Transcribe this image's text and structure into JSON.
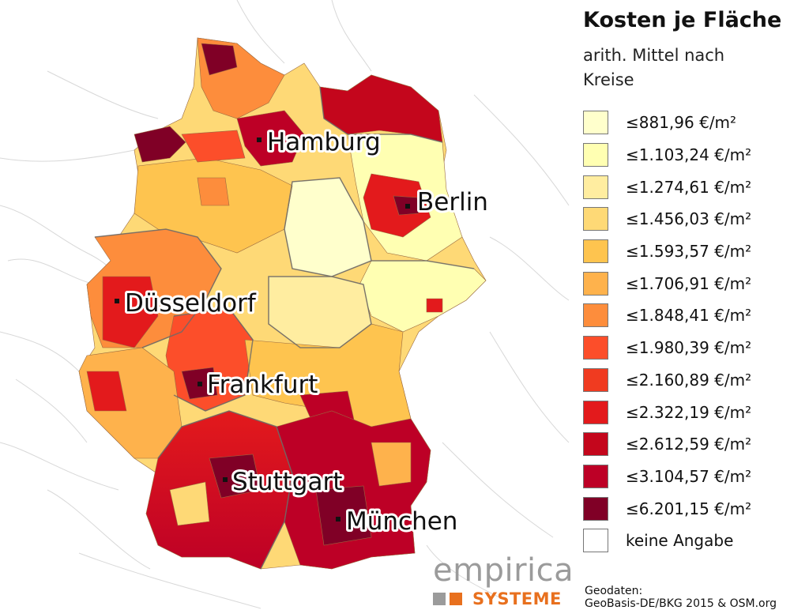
{
  "title": "Kosten je Fläche",
  "subtitle": "arith. Mittel nach Kreise",
  "legend": [
    {
      "label": "≤881,96 €/m²",
      "color": "#ffffcc"
    },
    {
      "label": "≤1.103,24 €/m²",
      "color": "#ffffb2"
    },
    {
      "label": "≤1.274,61 €/m²",
      "color": "#ffeda0"
    },
    {
      "label": "≤1.456,03 €/m²",
      "color": "#fed976"
    },
    {
      "label": "≤1.593,57 €/m²",
      "color": "#fec44f"
    },
    {
      "label": "≤1.706,91 €/m²",
      "color": "#feb24c"
    },
    {
      "label": "≤1.848,41 €/m²",
      "color": "#fd8d3c"
    },
    {
      "label": "≤1.980,39 €/m²",
      "color": "#fc4e2a"
    },
    {
      "label": "≤2.160,89 €/m²",
      "color": "#f03b20"
    },
    {
      "label": "≤2.322,19 €/m²",
      "color": "#e31a1c"
    },
    {
      "label": "≤2.612,59 €/m²",
      "color": "#c4061c"
    },
    {
      "label": "≤3.104,57 €/m²",
      "color": "#bd0026"
    },
    {
      "label": "≤6.201,15 €/m²",
      "color": "#800026"
    },
    {
      "label": "keine Angabe",
      "color": "#ffffff"
    }
  ],
  "cities": [
    {
      "name": "Hamburg"
    },
    {
      "name": "Berlin"
    },
    {
      "name": "Düsseldorf"
    },
    {
      "name": "Frankfurt"
    },
    {
      "name": "Stuttgart"
    },
    {
      "name": "München"
    }
  ],
  "brand": {
    "name": "empirica",
    "sub": "SYSTEME",
    "accent": "#e8701e",
    "gray": "#9b9b9b"
  },
  "source": {
    "line1": "Geodaten:",
    "line2": "GeoBasis-DE/BKG 2015 & OSM.org"
  }
}
